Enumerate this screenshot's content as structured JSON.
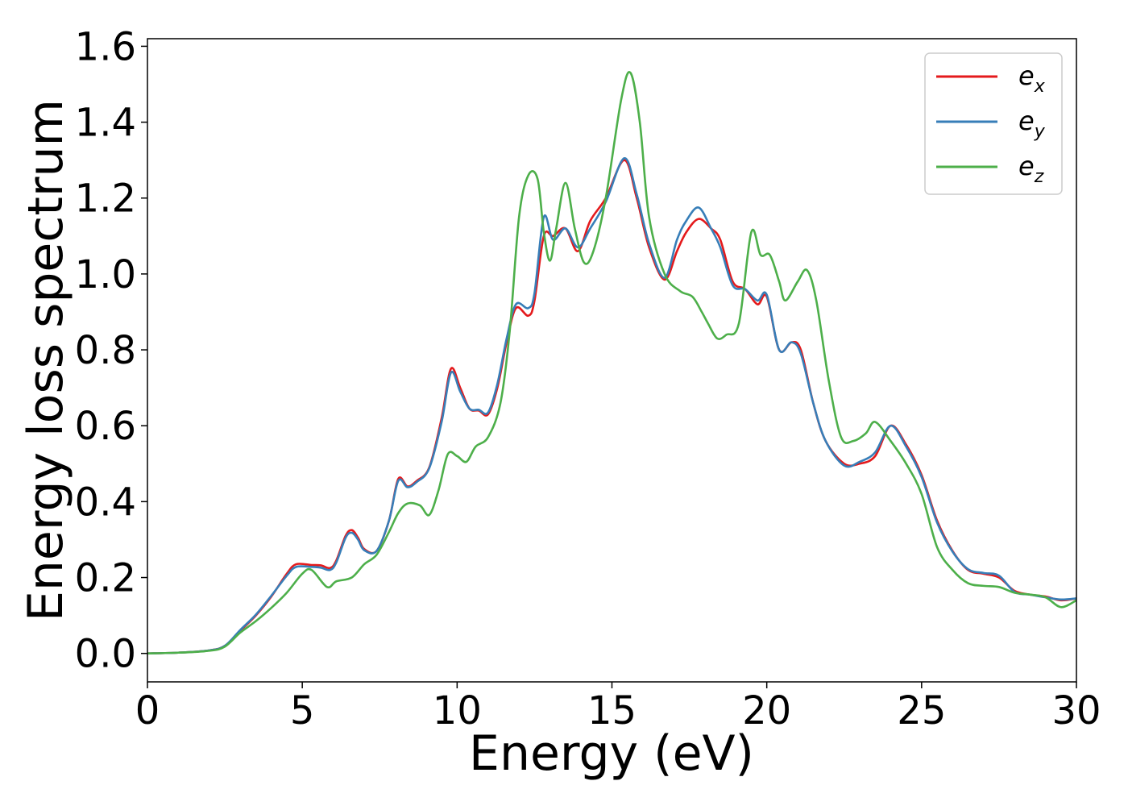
{
  "chart_data": {
    "type": "line",
    "title": "",
    "xlabel": "Energy (eV)",
    "ylabel": "Energy loss spectrum",
    "xlim": [
      0,
      30
    ],
    "ylim": [
      -0.075,
      1.62
    ],
    "xticks": [
      "0",
      "5",
      "10",
      "15",
      "20",
      "25",
      "30"
    ],
    "yticks": [
      "0.0",
      "0.2",
      "0.4",
      "0.6",
      "0.8",
      "1.0",
      "1.2",
      "1.4",
      "1.6"
    ],
    "grid": false,
    "legend_position": "top-right",
    "series": [
      {
        "name": "e_x",
        "label_base": "e",
        "label_sub": "x",
        "color": "#e41a1c",
        "points": [
          [
            0,
            0
          ],
          [
            1,
            0.002
          ],
          [
            2,
            0.008
          ],
          [
            2.5,
            0.02
          ],
          [
            3,
            0.06
          ],
          [
            3.5,
            0.1
          ],
          [
            4,
            0.15
          ],
          [
            4.5,
            0.21
          ],
          [
            4.8,
            0.235
          ],
          [
            5.3,
            0.233
          ],
          [
            5.6,
            0.232
          ],
          [
            5.9,
            0.225
          ],
          [
            6.1,
            0.245
          ],
          [
            6.4,
            0.31
          ],
          [
            6.6,
            0.325
          ],
          [
            6.8,
            0.305
          ],
          [
            7.0,
            0.275
          ],
          [
            7.4,
            0.27
          ],
          [
            7.8,
            0.35
          ],
          [
            8.1,
            0.46
          ],
          [
            8.4,
            0.44
          ],
          [
            8.7,
            0.455
          ],
          [
            9.1,
            0.49
          ],
          [
            9.5,
            0.62
          ],
          [
            9.8,
            0.75
          ],
          [
            10.1,
            0.7
          ],
          [
            10.4,
            0.645
          ],
          [
            10.7,
            0.64
          ],
          [
            11.0,
            0.63
          ],
          [
            11.3,
            0.7
          ],
          [
            11.6,
            0.82
          ],
          [
            11.9,
            0.91
          ],
          [
            12.3,
            0.89
          ],
          [
            12.5,
            0.93
          ],
          [
            12.8,
            1.1
          ],
          [
            13.1,
            1.1
          ],
          [
            13.5,
            1.12
          ],
          [
            13.9,
            1.06
          ],
          [
            14.3,
            1.14
          ],
          [
            14.8,
            1.2
          ],
          [
            15.4,
            1.3
          ],
          [
            15.8,
            1.2
          ],
          [
            16.2,
            1.07
          ],
          [
            16.7,
            0.985
          ],
          [
            17.1,
            1.06
          ],
          [
            17.4,
            1.11
          ],
          [
            17.8,
            1.145
          ],
          [
            18.2,
            1.12
          ],
          [
            18.5,
            1.09
          ],
          [
            18.9,
            0.98
          ],
          [
            19.3,
            0.96
          ],
          [
            19.7,
            0.92
          ],
          [
            20.0,
            0.94
          ],
          [
            20.4,
            0.8
          ],
          [
            20.8,
            0.82
          ],
          [
            21.1,
            0.8
          ],
          [
            21.5,
            0.66
          ],
          [
            21.9,
            0.56
          ],
          [
            22.5,
            0.5
          ],
          [
            23.0,
            0.5
          ],
          [
            23.5,
            0.52
          ],
          [
            24.0,
            0.6
          ],
          [
            24.5,
            0.55
          ],
          [
            25.0,
            0.47
          ],
          [
            25.5,
            0.35
          ],
          [
            26.0,
            0.27
          ],
          [
            26.5,
            0.22
          ],
          [
            27.0,
            0.21
          ],
          [
            27.5,
            0.2
          ],
          [
            28.0,
            0.165
          ],
          [
            28.5,
            0.155
          ],
          [
            29.0,
            0.15
          ],
          [
            29.5,
            0.14
          ],
          [
            30.0,
            0.145
          ]
        ]
      },
      {
        "name": "e_y",
        "label_base": "e",
        "label_sub": "y",
        "color": "#377eb8",
        "points": [
          [
            0,
            0
          ],
          [
            1,
            0.002
          ],
          [
            2,
            0.008
          ],
          [
            2.5,
            0.02
          ],
          [
            3,
            0.062
          ],
          [
            3.5,
            0.102
          ],
          [
            4,
            0.152
          ],
          [
            4.5,
            0.205
          ],
          [
            4.8,
            0.228
          ],
          [
            5.3,
            0.228
          ],
          [
            5.6,
            0.226
          ],
          [
            5.9,
            0.22
          ],
          [
            6.1,
            0.24
          ],
          [
            6.4,
            0.305
          ],
          [
            6.6,
            0.318
          ],
          [
            6.8,
            0.3
          ],
          [
            7.0,
            0.272
          ],
          [
            7.4,
            0.27
          ],
          [
            7.8,
            0.35
          ],
          [
            8.1,
            0.455
          ],
          [
            8.4,
            0.438
          ],
          [
            8.7,
            0.452
          ],
          [
            9.1,
            0.488
          ],
          [
            9.5,
            0.61
          ],
          [
            9.8,
            0.74
          ],
          [
            10.1,
            0.69
          ],
          [
            10.4,
            0.645
          ],
          [
            10.7,
            0.642
          ],
          [
            11.0,
            0.635
          ],
          [
            11.3,
            0.71
          ],
          [
            11.6,
            0.83
          ],
          [
            11.9,
            0.92
          ],
          [
            12.3,
            0.91
          ],
          [
            12.5,
            0.95
          ],
          [
            12.8,
            1.15
          ],
          [
            13.1,
            1.09
          ],
          [
            13.5,
            1.12
          ],
          [
            13.9,
            1.07
          ],
          [
            14.3,
            1.12
          ],
          [
            14.8,
            1.19
          ],
          [
            15.4,
            1.305
          ],
          [
            15.8,
            1.21
          ],
          [
            16.2,
            1.08
          ],
          [
            16.7,
            0.99
          ],
          [
            17.1,
            1.09
          ],
          [
            17.4,
            1.14
          ],
          [
            17.8,
            1.175
          ],
          [
            18.2,
            1.12
          ],
          [
            18.5,
            1.07
          ],
          [
            18.9,
            0.97
          ],
          [
            19.3,
            0.96
          ],
          [
            19.7,
            0.93
          ],
          [
            20.0,
            0.945
          ],
          [
            20.4,
            0.8
          ],
          [
            20.8,
            0.82
          ],
          [
            21.1,
            0.79
          ],
          [
            21.5,
            0.66
          ],
          [
            21.9,
            0.56
          ],
          [
            22.5,
            0.495
          ],
          [
            23.0,
            0.505
          ],
          [
            23.5,
            0.53
          ],
          [
            24.0,
            0.6
          ],
          [
            24.5,
            0.545
          ],
          [
            25.0,
            0.465
          ],
          [
            25.5,
            0.345
          ],
          [
            26.0,
            0.268
          ],
          [
            26.5,
            0.222
          ],
          [
            27.0,
            0.212
          ],
          [
            27.5,
            0.205
          ],
          [
            28.0,
            0.162
          ],
          [
            28.5,
            0.155
          ],
          [
            29.0,
            0.148
          ],
          [
            29.5,
            0.142
          ],
          [
            30.0,
            0.145
          ]
        ]
      },
      {
        "name": "e_z",
        "label_base": "e",
        "label_sub": "z",
        "color": "#4daf4a",
        "points": [
          [
            0,
            0
          ],
          [
            1,
            0.002
          ],
          [
            2,
            0.007
          ],
          [
            2.5,
            0.018
          ],
          [
            3,
            0.055
          ],
          [
            3.5,
            0.085
          ],
          [
            4,
            0.12
          ],
          [
            4.5,
            0.16
          ],
          [
            5.0,
            0.21
          ],
          [
            5.3,
            0.22
          ],
          [
            5.8,
            0.175
          ],
          [
            6.1,
            0.19
          ],
          [
            6.6,
            0.2
          ],
          [
            7.0,
            0.235
          ],
          [
            7.4,
            0.26
          ],
          [
            7.8,
            0.32
          ],
          [
            8.1,
            0.37
          ],
          [
            8.4,
            0.395
          ],
          [
            8.8,
            0.39
          ],
          [
            9.1,
            0.365
          ],
          [
            9.4,
            0.43
          ],
          [
            9.7,
            0.525
          ],
          [
            10.0,
            0.52
          ],
          [
            10.3,
            0.505
          ],
          [
            10.6,
            0.545
          ],
          [
            11.0,
            0.57
          ],
          [
            11.4,
            0.66
          ],
          [
            11.7,
            0.85
          ],
          [
            12.0,
            1.15
          ],
          [
            12.3,
            1.26
          ],
          [
            12.6,
            1.25
          ],
          [
            12.8,
            1.11
          ],
          [
            13.0,
            1.035
          ],
          [
            13.2,
            1.12
          ],
          [
            13.5,
            1.24
          ],
          [
            13.8,
            1.12
          ],
          [
            14.1,
            1.03
          ],
          [
            14.4,
            1.06
          ],
          [
            14.8,
            1.2
          ],
          [
            15.3,
            1.46
          ],
          [
            15.6,
            1.53
          ],
          [
            15.9,
            1.4
          ],
          [
            16.2,
            1.15
          ],
          [
            16.7,
            1.0
          ],
          [
            17.2,
            0.955
          ],
          [
            17.6,
            0.94
          ],
          [
            17.9,
            0.9
          ],
          [
            18.1,
            0.87
          ],
          [
            18.4,
            0.83
          ],
          [
            18.7,
            0.84
          ],
          [
            19.1,
            0.87
          ],
          [
            19.5,
            1.11
          ],
          [
            19.8,
            1.05
          ],
          [
            20.1,
            1.05
          ],
          [
            20.4,
            0.98
          ],
          [
            20.6,
            0.93
          ],
          [
            21.0,
            0.98
          ],
          [
            21.3,
            1.01
          ],
          [
            21.6,
            0.93
          ],
          [
            22.0,
            0.72
          ],
          [
            22.4,
            0.57
          ],
          [
            22.8,
            0.56
          ],
          [
            23.2,
            0.58
          ],
          [
            23.5,
            0.61
          ],
          [
            24.0,
            0.56
          ],
          [
            24.5,
            0.5
          ],
          [
            25.0,
            0.42
          ],
          [
            25.5,
            0.28
          ],
          [
            26.0,
            0.22
          ],
          [
            26.5,
            0.185
          ],
          [
            27.0,
            0.178
          ],
          [
            27.5,
            0.175
          ],
          [
            28.0,
            0.16
          ],
          [
            28.5,
            0.155
          ],
          [
            29.0,
            0.148
          ],
          [
            29.5,
            0.122
          ],
          [
            30.0,
            0.14
          ]
        ]
      }
    ]
  }
}
